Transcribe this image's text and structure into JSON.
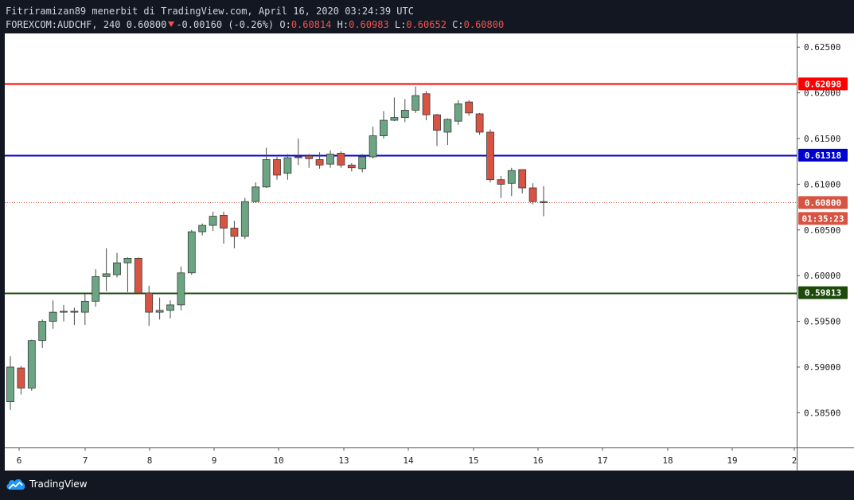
{
  "header": {
    "publisher_line": "Fitriramizan89 menerbit di TradingView.com, April 16, 2020 03:24:39 UTC",
    "symbol": "FOREXCOM:AUDCHF, 240",
    "last": "0.60800",
    "change": "-0.00160 (-0.26%)",
    "o_label": "O:",
    "o_value": "0.60814",
    "h_label": "H:",
    "h_value": "0.60983",
    "l_label": "L:",
    "l_value": "0.60652",
    "c_label": "C:",
    "c_value": "0.60800"
  },
  "footer": {
    "brand": "TradingView"
  },
  "colors": {
    "background": "#131722",
    "plot": "#ffffff",
    "up": "#6ba583",
    "down": "#d75442",
    "resistance": "#ff0000",
    "middle": "#0000cc",
    "support": "#1b4a0b",
    "last_price": "#d75442"
  },
  "chart_data": {
    "type": "candlestick",
    "symbol": "FOREXCOM:AUDCHF",
    "timeframe": "240",
    "ylim": [
      0.5812,
      0.6265
    ],
    "y_ticks": [
      "0.62500",
      "0.62000",
      "0.61500",
      "0.61000",
      "0.60500",
      "0.60000",
      "0.59500",
      "0.59000",
      "0.58500"
    ],
    "x_ticks": [
      "6",
      "7",
      "8",
      "9",
      "10",
      "13",
      "14",
      "15",
      "16",
      "17",
      "18",
      "19",
      "2"
    ],
    "horizontal_lines": [
      {
        "value": 0.62098,
        "label": "0.62098",
        "color": "#ff0000"
      },
      {
        "value": 0.61318,
        "label": "0.61318",
        "color": "#0000cc"
      },
      {
        "value": 0.59813,
        "label": "0.59813",
        "color": "#1b4a0b"
      }
    ],
    "last_price": {
      "value": 0.608,
      "label": "0.60800",
      "countdown": "01:35:23"
    },
    "candles": [
      {
        "o": 0.5862,
        "h": 0.5912,
        "l": 0.5853,
        "c": 0.59
      },
      {
        "o": 0.5899,
        "h": 0.5901,
        "l": 0.587,
        "c": 0.5877
      },
      {
        "o": 0.5877,
        "h": 0.593,
        "l": 0.5874,
        "c": 0.5929
      },
      {
        "o": 0.5929,
        "h": 0.5952,
        "l": 0.5921,
        "c": 0.595
      },
      {
        "o": 0.595,
        "h": 0.5973,
        "l": 0.5942,
        "c": 0.596
      },
      {
        "o": 0.596,
        "h": 0.5968,
        "l": 0.595,
        "c": 0.5961
      },
      {
        "o": 0.5961,
        "h": 0.5965,
        "l": 0.5946,
        "c": 0.596
      },
      {
        "o": 0.596,
        "h": 0.598,
        "l": 0.5946,
        "c": 0.5972
      },
      {
        "o": 0.5972,
        "h": 0.6007,
        "l": 0.5966,
        "c": 0.5999
      },
      {
        "o": 0.5999,
        "h": 0.603,
        "l": 0.5983,
        "c": 0.6002
      },
      {
        "o": 0.6001,
        "h": 0.6025,
        "l": 0.5998,
        "c": 0.6014
      },
      {
        "o": 0.6014,
        "h": 0.602,
        "l": 0.5982,
        "c": 0.6019
      },
      {
        "o": 0.6019,
        "h": 0.602,
        "l": 0.598,
        "c": 0.5981
      },
      {
        "o": 0.5981,
        "h": 0.5989,
        "l": 0.5945,
        "c": 0.596
      },
      {
        "o": 0.596,
        "h": 0.5976,
        "l": 0.5952,
        "c": 0.5962
      },
      {
        "o": 0.5962,
        "h": 0.5973,
        "l": 0.5953,
        "c": 0.5968
      },
      {
        "o": 0.5968,
        "h": 0.601,
        "l": 0.5962,
        "c": 0.6003
      },
      {
        "o": 0.6003,
        "h": 0.605,
        "l": 0.6001,
        "c": 0.6048
      },
      {
        "o": 0.6048,
        "h": 0.6057,
        "l": 0.6044,
        "c": 0.6055
      },
      {
        "o": 0.6055,
        "h": 0.607,
        "l": 0.6049,
        "c": 0.6065
      },
      {
        "o": 0.6066,
        "h": 0.607,
        "l": 0.6035,
        "c": 0.6052
      },
      {
        "o": 0.6052,
        "h": 0.606,
        "l": 0.603,
        "c": 0.6043
      },
      {
        "o": 0.6043,
        "h": 0.6085,
        "l": 0.604,
        "c": 0.6081
      },
      {
        "o": 0.6081,
        "h": 0.6102,
        "l": 0.608,
        "c": 0.6097
      },
      {
        "o": 0.6097,
        "h": 0.614,
        "l": 0.6096,
        "c": 0.6127
      },
      {
        "o": 0.6127,
        "h": 0.613,
        "l": 0.6105,
        "c": 0.611
      },
      {
        "o": 0.6112,
        "h": 0.6133,
        "l": 0.6105,
        "c": 0.6129
      },
      {
        "o": 0.6129,
        "h": 0.615,
        "l": 0.6121,
        "c": 0.613
      },
      {
        "o": 0.6131,
        "h": 0.6133,
        "l": 0.6118,
        "c": 0.6128
      },
      {
        "o": 0.6127,
        "h": 0.6135,
        "l": 0.6117,
        "c": 0.6121
      },
      {
        "o": 0.6122,
        "h": 0.6137,
        "l": 0.6118,
        "c": 0.6133
      },
      {
        "o": 0.6134,
        "h": 0.6136,
        "l": 0.6118,
        "c": 0.6121
      },
      {
        "o": 0.6121,
        "h": 0.6123,
        "l": 0.6114,
        "c": 0.6118
      },
      {
        "o": 0.6117,
        "h": 0.6133,
        "l": 0.6113,
        "c": 0.613
      },
      {
        "o": 0.613,
        "h": 0.6163,
        "l": 0.6128,
        "c": 0.6153
      },
      {
        "o": 0.6153,
        "h": 0.618,
        "l": 0.615,
        "c": 0.617
      },
      {
        "o": 0.617,
        "h": 0.6195,
        "l": 0.6169,
        "c": 0.6173
      },
      {
        "o": 0.6173,
        "h": 0.6193,
        "l": 0.6168,
        "c": 0.6181
      },
      {
        "o": 0.6181,
        "h": 0.6207,
        "l": 0.6178,
        "c": 0.6197
      },
      {
        "o": 0.6199,
        "h": 0.6202,
        "l": 0.617,
        "c": 0.6176
      },
      {
        "o": 0.6176,
        "h": 0.6177,
        "l": 0.6142,
        "c": 0.6159
      },
      {
        "o": 0.6157,
        "h": 0.6172,
        "l": 0.6143,
        "c": 0.6171
      },
      {
        "o": 0.6169,
        "h": 0.6192,
        "l": 0.6165,
        "c": 0.6188
      },
      {
        "o": 0.619,
        "h": 0.6192,
        "l": 0.6175,
        "c": 0.6178
      },
      {
        "o": 0.6177,
        "h": 0.6178,
        "l": 0.6154,
        "c": 0.6157
      },
      {
        "o": 0.6157,
        "h": 0.616,
        "l": 0.6102,
        "c": 0.6105
      },
      {
        "o": 0.6105,
        "h": 0.6109,
        "l": 0.6085,
        "c": 0.61
      },
      {
        "o": 0.6101,
        "h": 0.6118,
        "l": 0.6087,
        "c": 0.6115
      },
      {
        "o": 0.6116,
        "h": 0.6116,
        "l": 0.609,
        "c": 0.6096
      },
      {
        "o": 0.6096,
        "h": 0.6101,
        "l": 0.6078,
        "c": 0.6081
      },
      {
        "o": 0.6081,
        "h": 0.6098,
        "l": 0.6065,
        "c": 0.608
      }
    ]
  }
}
